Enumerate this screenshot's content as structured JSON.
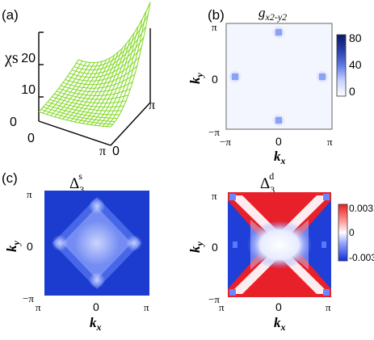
{
  "panel_a": {
    "label": "(a)",
    "zlabel": "χs",
    "z_ticks": [
      "20",
      "10",
      "0"
    ],
    "corner_tick": "0",
    "x_ticks": [
      "0",
      "π"
    ],
    "y_ticks": [
      "0",
      "π"
    ]
  },
  "panel_b": {
    "label": "(b)",
    "title": "gx2-y2",
    "ylabel": "ky",
    "xlabel": "kx",
    "y_ticks": [
      "π",
      "0",
      "−π"
    ],
    "x_ticks": [
      "−π",
      "0",
      "π"
    ],
    "colorbar_ticks": [
      "80",
      "40",
      "0"
    ]
  },
  "panel_c": {
    "label": "(c)",
    "title": "Δ3s",
    "ylabel": "ky",
    "xlabel": "kx",
    "y_ticks": [
      "π",
      "0",
      "−π"
    ],
    "x_ticks": [
      "π",
      "0",
      "π"
    ]
  },
  "panel_d": {
    "title": "Δ3d",
    "ylabel": "ky",
    "xlabel": "kx",
    "y_ticks": [
      "π",
      "0",
      "−π"
    ],
    "x_ticks": [
      "π",
      "0",
      "π"
    ],
    "colorbar_ticks": [
      "0.003",
      "0",
      "-0.003"
    ]
  },
  "colors": {
    "mesh": "#7fd81f",
    "blue_dark": "#1c3cd0",
    "red": "#e8202a",
    "colorbar_navy": "#0a1a6a"
  }
}
